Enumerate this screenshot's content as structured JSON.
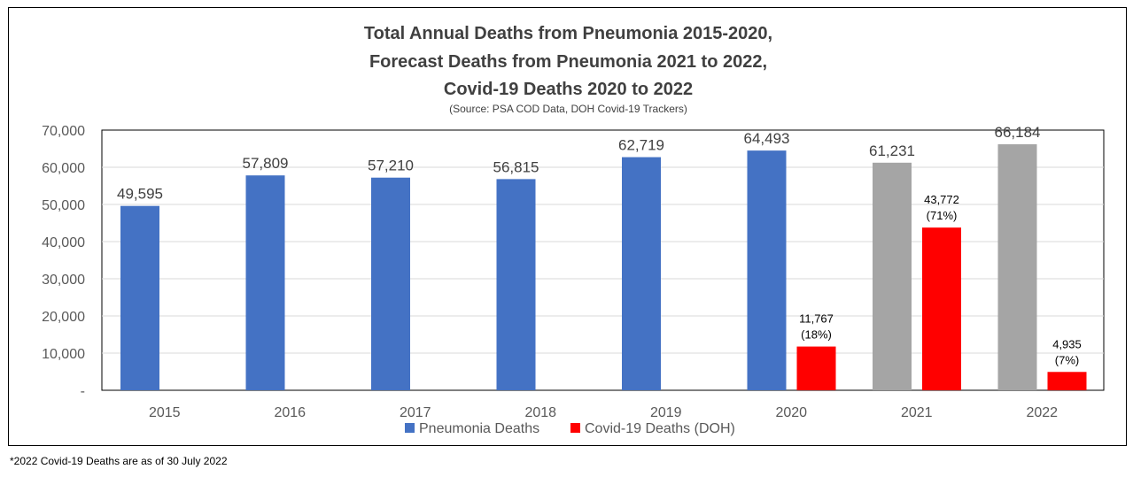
{
  "title_lines": [
    "Total Annual Deaths from Pneumonia 2015-2020,",
    "Forecast Deaths from Pneumonia 2021 to 2022,",
    "Covid-19 Deaths 2020 to 2022"
  ],
  "subtitle": "(Source: PSA COD Data, DOH Covid-19 Trackers)",
  "footnote": "*2022  Covid-19 Deaths are as of 30 July 2022",
  "chart_data": {
    "type": "bar",
    "title": "Total Annual Deaths from Pneumonia 2015-2020, Forecast Deaths from Pneumonia 2021 to 2022, Covid-19 Deaths 2020 to 2022",
    "categories": [
      "2015",
      "2016",
      "2017",
      "2018",
      "2019",
      "2020",
      "2021",
      "2022"
    ],
    "ylim": [
      0,
      70000
    ],
    "yticks": [
      {
        "value": 0,
        "label": "-"
      },
      {
        "value": 10000,
        "label": "10,000"
      },
      {
        "value": 20000,
        "label": "20,000"
      },
      {
        "value": 30000,
        "label": "30,000"
      },
      {
        "value": 40000,
        "label": "40,000"
      },
      {
        "value": 50000,
        "label": "50,000"
      },
      {
        "value": 60000,
        "label": "60,000"
      },
      {
        "value": 70000,
        "label": "70,000"
      }
    ],
    "grid": true,
    "legend_position": "bottom",
    "series": [
      {
        "name": "Pneumonia Deaths",
        "color": "#4472C4",
        "point_colors": [
          "#4472C4",
          "#4472C4",
          "#4472C4",
          "#4472C4",
          "#4472C4",
          "#4472C4",
          "#A5A5A5",
          "#A5A5A5"
        ],
        "values": [
          49595,
          57809,
          57210,
          56815,
          62719,
          64493,
          61231,
          66184
        ],
        "labels": [
          "49,595",
          "57,809",
          "57,210",
          "56,815",
          "62,719",
          "64,493",
          "61,231",
          "66,184"
        ]
      },
      {
        "name": "Covid-19 Deaths (DOH)",
        "color": "#FF0000",
        "values": [
          null,
          null,
          null,
          null,
          null,
          11767,
          43772,
          4935
        ],
        "labels": [
          null,
          null,
          null,
          null,
          null,
          "11,767",
          "43,772",
          "4,935"
        ],
        "sublabels": [
          null,
          null,
          null,
          null,
          null,
          "(18%)",
          "(71%)",
          "(7%)"
        ]
      }
    ]
  }
}
